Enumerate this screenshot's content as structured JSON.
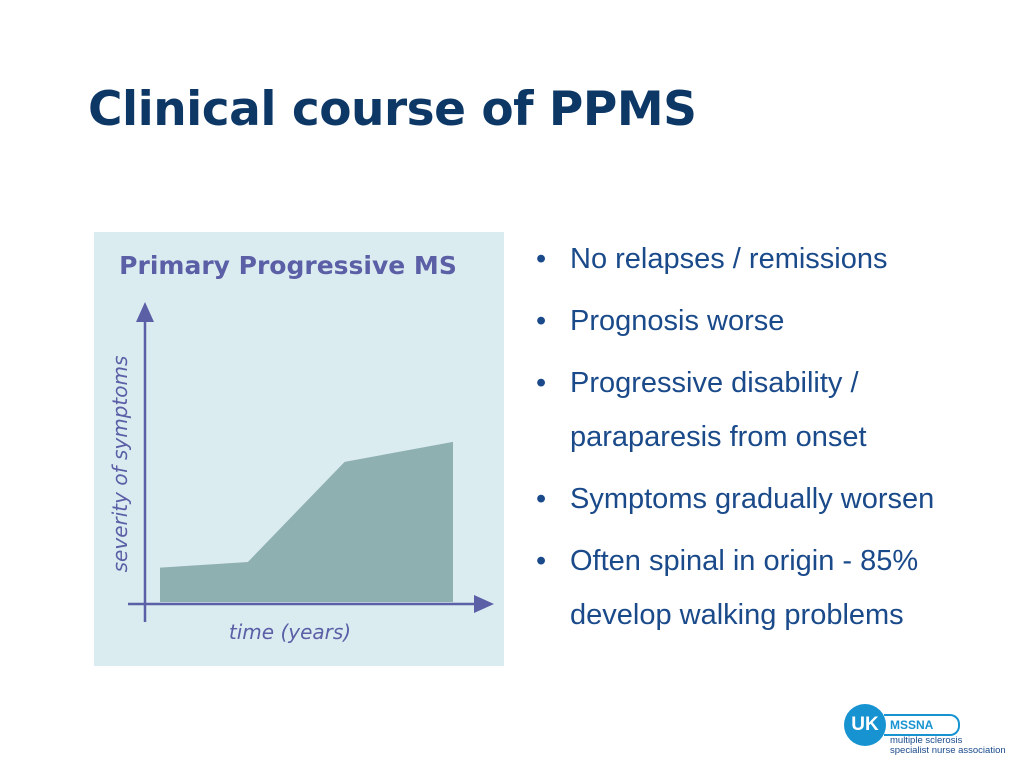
{
  "slide": {
    "title": "Clinical course of PPMS"
  },
  "chart_data": {
    "type": "area",
    "title": "Primary Progressive MS",
    "xlabel": "time (years)",
    "ylabel": "severity of symptoms",
    "x": [
      0,
      0.3,
      0.63,
      1.0
    ],
    "values": [
      0.12,
      0.14,
      0.49,
      0.56
    ],
    "xlim": [
      0,
      1
    ],
    "ylim": [
      0,
      1
    ],
    "grid": false,
    "colors": {
      "background": "#dbecf1",
      "fill": "#8fb0b1",
      "axis": "#5a5fa6",
      "title": "#5a5fa6"
    }
  },
  "bullets": [
    "No relapses / remissions",
    "Prognosis worse",
    "Progressive disability / paraparesis from onset",
    "Symptoms gradually worsen",
    "Often spinal in origin - 85% develop walking problems"
  ],
  "logo": {
    "badge": "UK",
    "name": "MSSNA",
    "line1": "multiple sclerosis",
    "line2": "specialist nurse association",
    "color": "#1793d1"
  },
  "colors": {
    "title": "#0d3866",
    "bullet_text": "#1a4a8a"
  }
}
